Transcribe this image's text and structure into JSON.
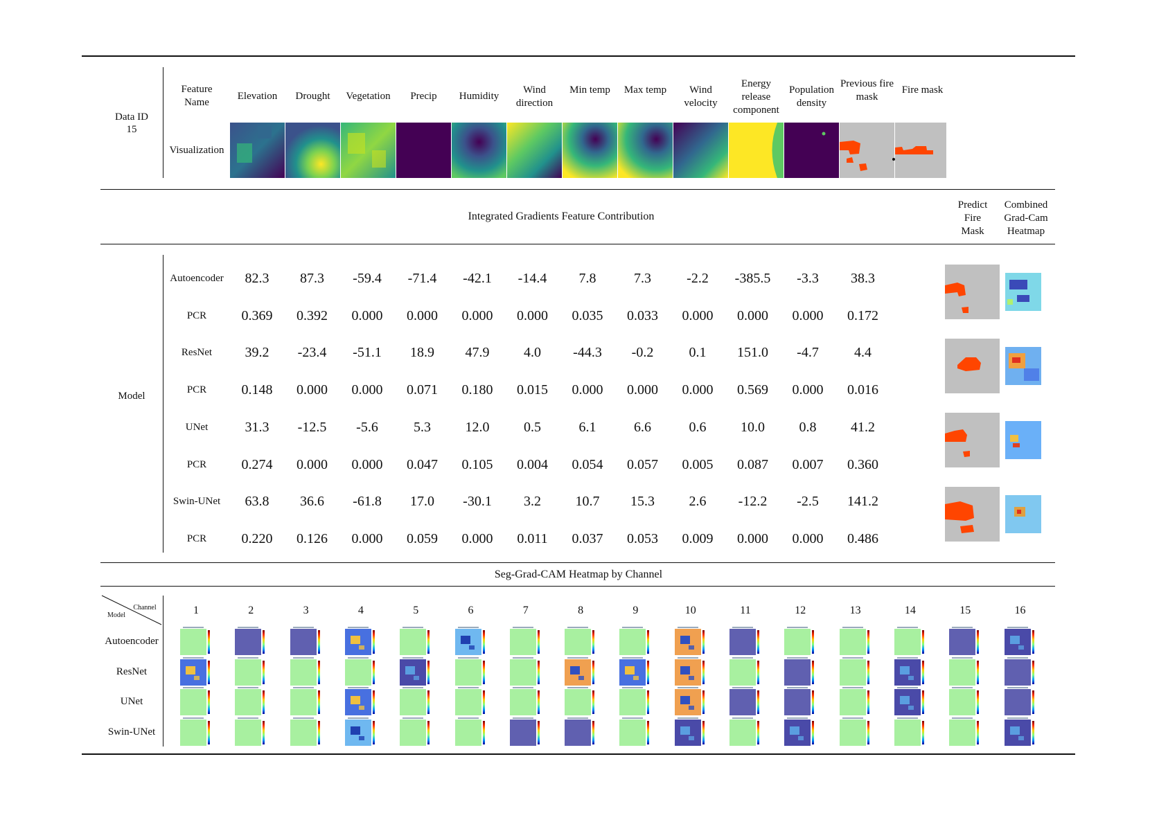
{
  "data_id_label": "Data ID",
  "data_id": "15",
  "feature_name_label": "Feature Name",
  "visualization_label": "Visualization",
  "features": [
    "Elevation",
    "Drought",
    "Vegetation",
    "Precip",
    "Humidity",
    "Wind direction",
    "Min temp",
    "Max temp",
    "Wind velocity",
    "Energy release component",
    "Population density",
    "Previous fire mask",
    "Fire mask"
  ],
  "ig_title": "Integrated Gradients Feature Contribution",
  "predict_fire_mask_label": "Predict Fire Mask",
  "combined_gradcam_label": "Combined Grad-Cam Heatmap",
  "model_label": "Model",
  "rows": [
    {
      "name": "Autoencoder",
      "values": [
        "82.3",
        "87.3",
        "-59.4",
        "-71.4",
        "-42.1",
        "-14.4",
        "7.8",
        "7.3",
        "-2.2",
        "-385.5",
        "-3.3",
        "38.3"
      ]
    },
    {
      "name": "PCR",
      "values": [
        "0.369",
        "0.392",
        "0.000",
        "0.000",
        "0.000",
        "0.000",
        "0.035",
        "0.033",
        "0.000",
        "0.000",
        "0.000",
        "0.172"
      ]
    },
    {
      "name": "ResNet",
      "values": [
        "39.2",
        "-23.4",
        "-51.1",
        "18.9",
        "47.9",
        "4.0",
        "-44.3",
        "-0.2",
        "0.1",
        "151.0",
        "-4.7",
        "4.4"
      ]
    },
    {
      "name": "PCR",
      "values": [
        "0.148",
        "0.000",
        "0.000",
        "0.071",
        "0.180",
        "0.015",
        "0.000",
        "0.000",
        "0.000",
        "0.569",
        "0.000",
        "0.016"
      ]
    },
    {
      "name": "UNet",
      "values": [
        "31.3",
        "-12.5",
        "-5.6",
        "5.3",
        "12.0",
        "0.5",
        "6.1",
        "6.6",
        "0.6",
        "10.0",
        "0.8",
        "41.2"
      ]
    },
    {
      "name": "PCR",
      "values": [
        "0.274",
        "0.000",
        "0.000",
        "0.047",
        "0.105",
        "0.004",
        "0.054",
        "0.057",
        "0.005",
        "0.087",
        "0.007",
        "0.360"
      ]
    },
    {
      "name": "Swin-UNet",
      "values": [
        "63.8",
        "36.6",
        "-61.8",
        "17.0",
        "-30.1",
        "3.2",
        "10.7",
        "15.3",
        "2.6",
        "-12.2",
        "-2.5",
        "141.2"
      ]
    },
    {
      "name": "PCR",
      "values": [
        "0.220",
        "0.126",
        "0.000",
        "0.059",
        "0.000",
        "0.011",
        "0.037",
        "0.053",
        "0.009",
        "0.000",
        "0.000",
        "0.486"
      ]
    }
  ],
  "seg_title": "Seg-Grad-CAM Heatmap by Channel",
  "corner_channel": "Channel",
  "corner_model": "Model",
  "channels": [
    "1",
    "2",
    "3",
    "4",
    "5",
    "6",
    "7",
    "8",
    "9",
    "10",
    "11",
    "12",
    "13",
    "14",
    "15",
    "16"
  ],
  "cam_models": [
    "Autoencoder",
    "ResNet",
    "UNet",
    "Swin-UNet"
  ],
  "cam_types": [
    [
      "green",
      "blue",
      "blue",
      "mix",
      "green",
      "mixlight",
      "green",
      "green",
      "green",
      "hot",
      "blue",
      "green",
      "green",
      "green",
      "blue",
      "bluedot"
    ],
    [
      "mix",
      "green",
      "green",
      "green",
      "bluedot",
      "green",
      "green",
      "hot",
      "mix",
      "hot",
      "green",
      "blue",
      "green",
      "bluedot",
      "green",
      "blue"
    ],
    [
      "green",
      "green",
      "green",
      "mix",
      "green",
      "green",
      "green",
      "green",
      "green",
      "hot",
      "blue",
      "blue",
      "green",
      "bluedot",
      "green",
      "blue"
    ],
    [
      "green",
      "green",
      "green",
      "mixlight",
      "green",
      "green",
      "blue",
      "blue",
      "green",
      "bluedot",
      "green",
      "bluedot",
      "green",
      "green",
      "green",
      "bluedot"
    ]
  ],
  "colors": {
    "fire": "#ff4500",
    "mask_bg": "#c0c0c0",
    "viridis_dark": "#440154",
    "viridis_yellow": "#fde725",
    "cam_green": "#a8f0a0",
    "cam_blue": "#5c5cb4"
  }
}
